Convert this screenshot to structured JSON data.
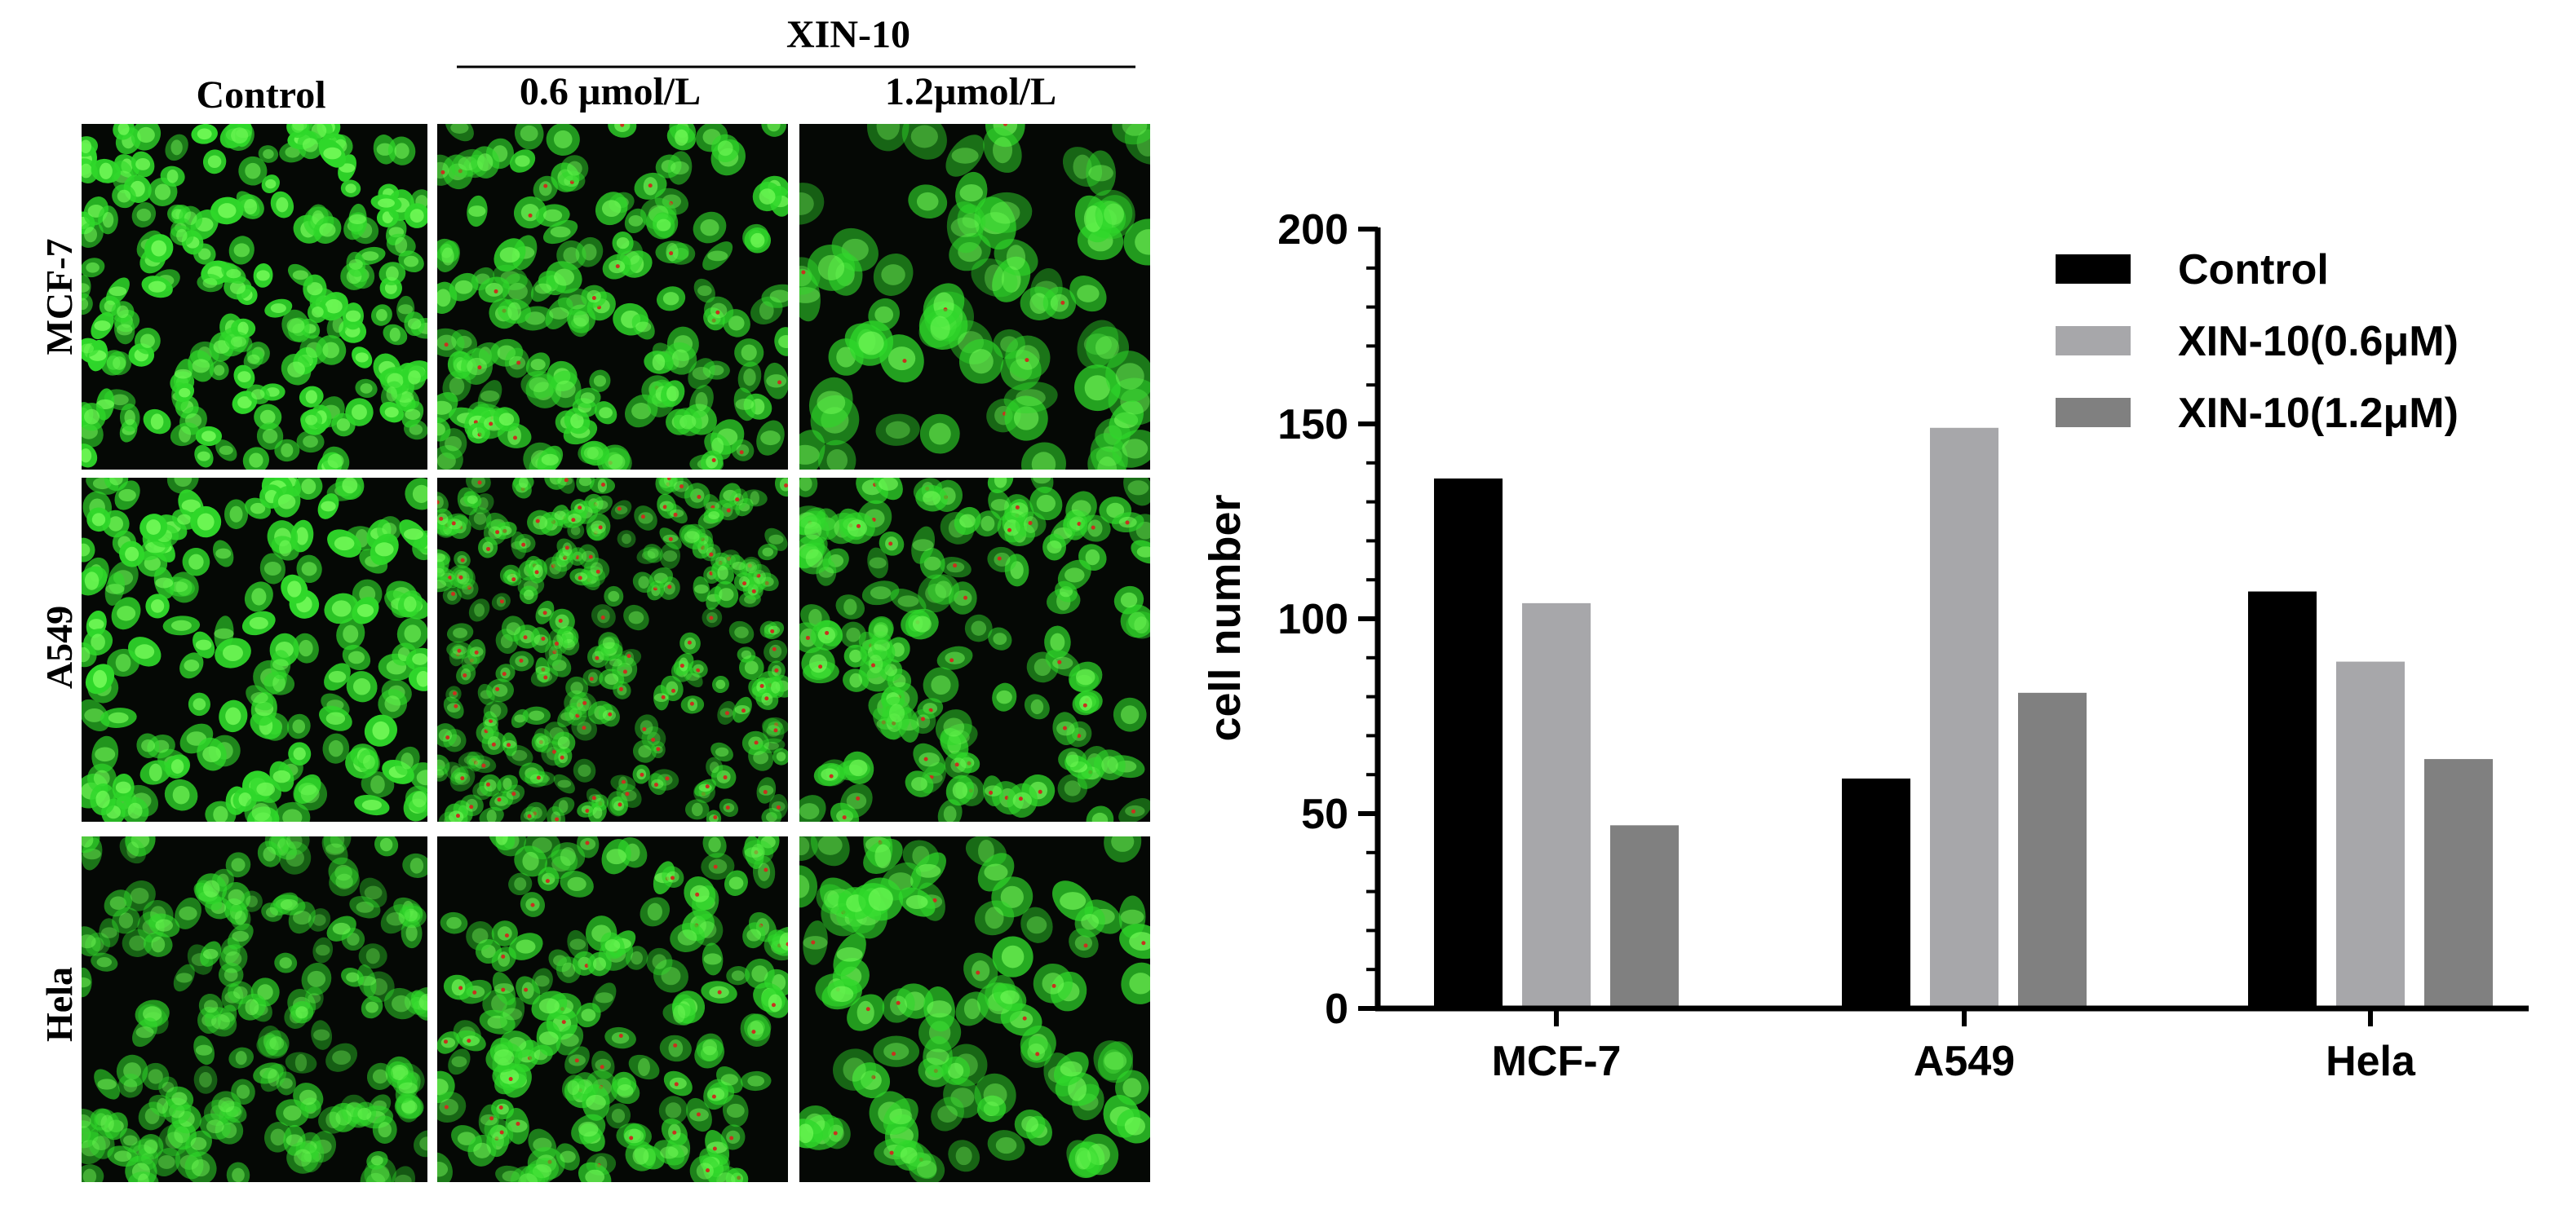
{
  "micrographs": {
    "group_header": "XIN-10",
    "columns": [
      "Control",
      "0.6 µmol/L",
      "1.2µmol/L"
    ],
    "rows": [
      "MCF-7",
      "A549",
      "Hela"
    ],
    "panel_colors": {
      "background": "#050805",
      "cell_green": "#2fd82a",
      "nucleus_green": "#7cff5e",
      "red_dot": "#c8321e"
    }
  },
  "chart_data": {
    "type": "bar",
    "categories": [
      "MCF-7",
      "A549",
      "Hela"
    ],
    "series": [
      {
        "name": "Control",
        "values": [
          136,
          59,
          107
        ],
        "color": "#000000"
      },
      {
        "name": "XIN-10(0.6μM)",
        "values": [
          104,
          149,
          89
        ],
        "color": "#a7a7aa"
      },
      {
        "name": "XIN-10(1.2μM)",
        "values": [
          47,
          81,
          64
        ],
        "color": "#808080"
      }
    ],
    "ylabel": "cell number",
    "xlabel": "",
    "ylim": [
      0,
      200
    ],
    "yticks": [
      "0",
      "50",
      "100",
      "150",
      "200"
    ],
    "legend_position": "top-right",
    "grid": false
  }
}
